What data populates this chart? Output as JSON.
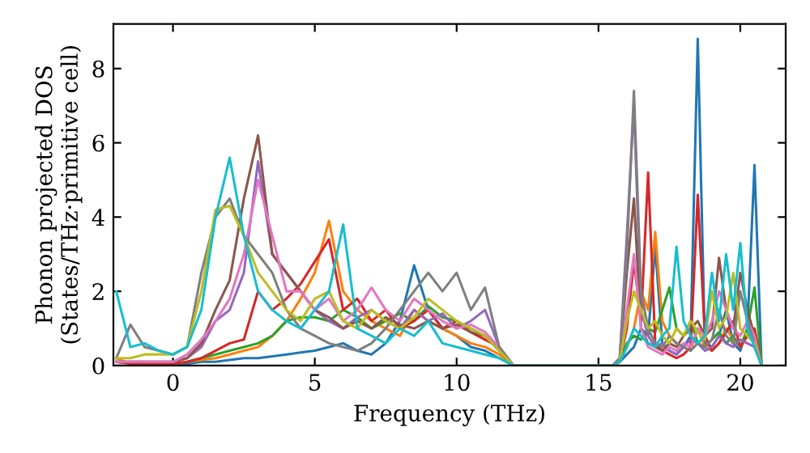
{
  "chart_data": {
    "type": "line",
    "xlabel": "Frequency (THz)",
    "ylabel": "Phonon projected DOS\n(States/THz·primitive cell)",
    "xlim": [
      -2.1,
      21.6
    ],
    "ylim": [
      0,
      9.2
    ],
    "xticks": [
      0,
      5,
      10,
      15,
      20
    ],
    "yticks": [
      0,
      2,
      4,
      6,
      8
    ],
    "grid": false,
    "legend": false,
    "marker": "none",
    "line_style": "solid",
    "x": [
      -2,
      -1.5,
      -1,
      -0.5,
      0,
      0.5,
      1,
      1.5,
      2,
      2.5,
      3,
      3.5,
      4,
      4.5,
      5,
      5.5,
      6,
      6.5,
      7,
      7.5,
      8,
      8.5,
      9,
      9.5,
      10,
      10.5,
      11,
      11.5,
      12,
      15.5,
      15.75,
      16,
      16.25,
      16.5,
      16.75,
      17,
      17.25,
      17.5,
      17.75,
      18,
      18.25,
      18.5,
      18.75,
      19,
      19.25,
      19.5,
      19.75,
      20,
      20.25,
      20.5,
      20.75
    ],
    "series": [
      {
        "color": "#1f77b4",
        "values": [
          null,
          null,
          null,
          null,
          0.05,
          0.05,
          0.1,
          0.1,
          0.15,
          0.2,
          0.2,
          0.25,
          0.3,
          0.35,
          0.4,
          0.5,
          0.6,
          0.4,
          0.3,
          0.6,
          1.2,
          2.7,
          1.5,
          1.0,
          0.8,
          0.5,
          0.4,
          0.2,
          0,
          0,
          0.1,
          0.3,
          0.5,
          1.0,
          0.8,
          3.2,
          0.6,
          0.4,
          0.3,
          0.5,
          0.8,
          8.8,
          0.6,
          0.5,
          0.8,
          1.5,
          0.6,
          0.4,
          1.0,
          5.4,
          0
        ]
      },
      {
        "color": "#ff7f0e",
        "values": [
          0.2,
          0.05,
          0.05,
          0.05,
          0.05,
          0.1,
          0.15,
          0.2,
          0.3,
          0.4,
          0.5,
          0.8,
          1.2,
          1.8,
          2.5,
          3.9,
          2.0,
          1.5,
          1.2,
          1.0,
          0.8,
          1.5,
          1.2,
          1.0,
          0.8,
          0.6,
          0.5,
          0.3,
          0,
          0,
          0.1,
          0.5,
          1.0,
          2.0,
          1.5,
          3.6,
          1.2,
          0.8,
          0.6,
          0.5,
          0.4,
          1.0,
          0.5,
          0.4,
          0.6,
          1.0,
          0.7,
          0.5,
          0.8,
          1.0,
          0
        ]
      },
      {
        "color": "#2ca02c",
        "values": [
          null,
          null,
          null,
          null,
          null,
          0.1,
          0.2,
          0.3,
          0.4,
          0.5,
          0.6,
          0.8,
          1.2,
          1.3,
          1.3,
          1.2,
          1.5,
          1.3,
          1.0,
          1.2,
          1.4,
          1.2,
          1.6,
          1.3,
          1.2,
          1.0,
          0.8,
          0.4,
          0,
          0,
          0.1,
          0.6,
          0.8,
          0.7,
          1.0,
          0.9,
          1.5,
          2.1,
          1.0,
          0.8,
          1.2,
          0.6,
          0.5,
          0.7,
          0.9,
          0.6,
          0.8,
          0.5,
          1.0,
          2.1,
          0
        ]
      },
      {
        "color": "#d62728",
        "values": [
          0.1,
          0.05,
          0.05,
          0.05,
          0.05,
          0.1,
          0.2,
          0.4,
          0.6,
          0.7,
          2.0,
          1.5,
          1.8,
          2.2,
          2.8,
          3.4,
          1.5,
          1.8,
          1.2,
          1.5,
          1.0,
          1.2,
          1.5,
          1.0,
          1.2,
          0.9,
          0.7,
          0.5,
          0,
          0,
          0.1,
          1.0,
          2.8,
          1.2,
          5.2,
          0.6,
          0.4,
          0.3,
          0.2,
          0.3,
          0.5,
          4.6,
          0.8,
          0.4,
          0.6,
          0.9,
          1.2,
          0.5,
          0.8,
          1.0,
          0
        ]
      },
      {
        "color": "#9467bd",
        "values": [
          0.1,
          0.1,
          0.1,
          0.1,
          0.1,
          0.2,
          0.5,
          1.2,
          1.5,
          2.5,
          5.5,
          3.0,
          2.5,
          2.0,
          1.5,
          1.2,
          1.0,
          1.3,
          1.5,
          1.2,
          1.0,
          1.5,
          1.2,
          1.4,
          1.0,
          1.2,
          1.5,
          0.5,
          0,
          0,
          0.2,
          3.5,
          7.0,
          1.5,
          0.8,
          0.5,
          0.6,
          0.4,
          0.3,
          0.5,
          0.7,
          0.6,
          0.4,
          0.5,
          0.8,
          0.6,
          0.5,
          0.7,
          0.6,
          0.5,
          0
        ]
      },
      {
        "color": "#8c564b",
        "values": [
          0.1,
          0.1,
          0.1,
          0.1,
          0.1,
          0.2,
          0.6,
          1.5,
          2.3,
          4.5,
          6.2,
          3.0,
          2.5,
          2.0,
          1.5,
          1.3,
          1.0,
          1.2,
          1.0,
          1.3,
          1.1,
          1.0,
          1.2,
          1.0,
          1.1,
          0.9,
          0.8,
          0.4,
          0,
          0,
          0.1,
          2.5,
          4.5,
          1.0,
          0.6,
          0.5,
          0.4,
          0.6,
          0.5,
          0.8,
          1.0,
          1.2,
          0.8,
          1.0,
          2.9,
          1.5,
          1.0,
          2.5,
          1.5,
          0.8,
          0
        ]
      },
      {
        "color": "#e377c2",
        "values": [
          0.1,
          0.1,
          0.1,
          0.1,
          0.1,
          0.3,
          0.7,
          1.2,
          1.8,
          3.0,
          5.0,
          3.5,
          2.0,
          2.0,
          1.5,
          1.8,
          1.2,
          1.5,
          2.1,
          1.5,
          1.2,
          1.8,
          1.5,
          1.2,
          1.0,
          1.1,
          0.9,
          0.5,
          0,
          0,
          0.1,
          1.5,
          3.0,
          1.0,
          0.5,
          0.4,
          0.3,
          0.5,
          0.4,
          0.6,
          0.5,
          1.0,
          0.8,
          1.2,
          2.0,
          1.5,
          1.0,
          0.8,
          1.2,
          0.8,
          0
        ]
      },
      {
        "color": "#7f7f7f",
        "values": [
          0.2,
          1.1,
          0.5,
          0.4,
          0.3,
          0.5,
          2.5,
          4.0,
          4.5,
          3.5,
          3.0,
          2.5,
          1.5,
          1.0,
          0.8,
          0.6,
          0.5,
          0.4,
          0.6,
          1.0,
          1.5,
          2.0,
          2.5,
          2.0,
          2.5,
          1.5,
          2.1,
          0.5,
          0,
          0,
          0.2,
          3.0,
          7.4,
          2.0,
          1.0,
          0.6,
          0.5,
          0.8,
          0.6,
          0.5,
          0.4,
          0.6,
          0.5,
          0.7,
          1.5,
          0.8,
          0.6,
          2.0,
          1.2,
          0.6,
          0
        ]
      },
      {
        "color": "#bcbd22",
        "values": [
          0.2,
          0.2,
          0.3,
          0.3,
          0.3,
          0.5,
          2.0,
          4.2,
          4.3,
          3.5,
          2.5,
          2.0,
          1.5,
          1.2,
          1.8,
          2.0,
          1.2,
          1.0,
          1.5,
          1.2,
          1.0,
          1.3,
          1.8,
          1.5,
          1.2,
          1.0,
          0.8,
          0.4,
          0,
          0,
          0.1,
          1.2,
          2.0,
          1.5,
          1.0,
          1.2,
          0.8,
          0.6,
          1.0,
          0.8,
          1.2,
          0.9,
          0.7,
          2.0,
          1.0,
          1.3,
          2.5,
          1.0,
          0.8,
          0.6,
          0
        ]
      },
      {
        "color": "#17becf",
        "values": [
          2.0,
          0.5,
          0.6,
          0.4,
          0.3,
          0.5,
          1.5,
          4.0,
          5.6,
          3.5,
          2.0,
          1.5,
          1.2,
          1.0,
          1.5,
          2.0,
          3.8,
          1.0,
          0.8,
          0.6,
          1.0,
          0.8,
          1.2,
          0.6,
          0.5,
          0.4,
          0.3,
          0.2,
          0,
          0,
          0.1,
          0.5,
          1.0,
          0.8,
          0.6,
          0.5,
          0.8,
          1.0,
          3.2,
          1.2,
          0.8,
          0.6,
          0.8,
          2.5,
          1.2,
          3.0,
          1.5,
          3.3,
          1.0,
          0.5,
          0
        ]
      }
    ]
  }
}
